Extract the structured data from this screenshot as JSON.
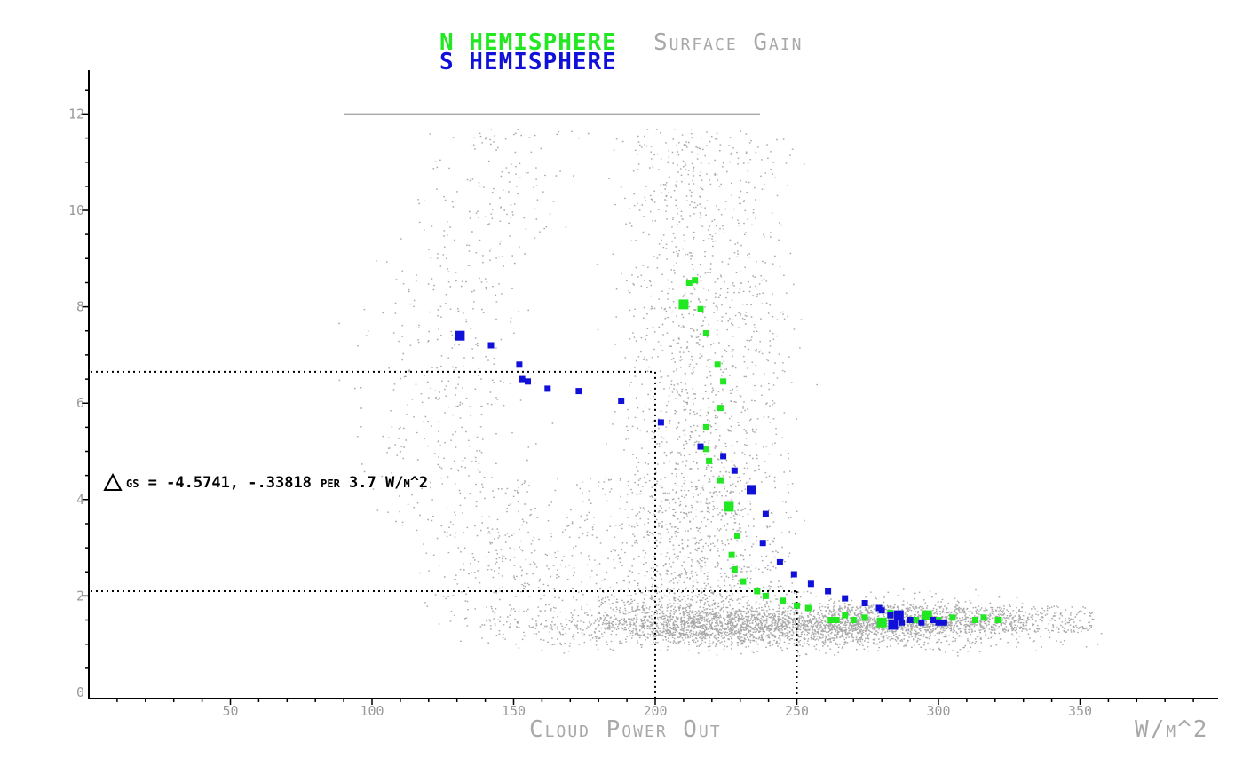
{
  "chart_data": {
    "type": "scatter",
    "title_parts": {
      "n_label": "N HEMISPHERE",
      "gain_label": "Surface Gain",
      "s_label": "S HEMISPHERE"
    },
    "xlabel": "Cloud Power Out",
    "x_units": "W/m^2",
    "xlim": [
      0,
      400
    ],
    "ylim": [
      0,
      12.5
    ],
    "x_ticks": [
      50,
      100,
      150,
      200,
      250,
      300,
      350
    ],
    "y_ticks": [
      0,
      2,
      4,
      6,
      8,
      10,
      12
    ],
    "annotation": "gs = -4.5741, -.33818 per 3.7 W/m^2",
    "annotation_symbol": "triangle-delta",
    "reference_lines": [
      {
        "x": 200,
        "y": 6.65
      },
      {
        "x": 250,
        "y": 2.1
      }
    ],
    "colors": {
      "n_hemisphere": "#22e822",
      "s_hemisphere": "#1010d8",
      "background_points": "#a8a8a8",
      "axes": "#000000"
    },
    "series": [
      {
        "name": "N HEMISPHERE",
        "color": "#22e822",
        "points": [
          [
            212,
            8.5
          ],
          [
            214,
            8.55
          ],
          [
            210,
            8.05
          ],
          [
            216,
            7.95
          ],
          [
            218,
            7.45
          ],
          [
            222,
            6.8
          ],
          [
            224,
            6.45
          ],
          [
            223,
            5.9
          ],
          [
            218,
            5.5
          ],
          [
            218,
            5.05
          ],
          [
            219,
            4.8
          ],
          [
            223,
            4.4
          ],
          [
            226,
            3.85
          ],
          [
            229,
            3.25
          ],
          [
            227,
            2.85
          ],
          [
            228,
            2.55
          ],
          [
            231,
            2.3
          ],
          [
            236,
            2.1
          ],
          [
            239,
            2.0
          ],
          [
            245,
            1.9
          ],
          [
            250,
            1.8
          ],
          [
            254,
            1.75
          ],
          [
            262,
            1.5
          ],
          [
            264,
            1.5
          ],
          [
            267,
            1.6
          ],
          [
            270,
            1.5
          ],
          [
            274,
            1.55
          ],
          [
            280,
            1.45
          ],
          [
            283,
            1.65
          ],
          [
            286,
            1.55
          ],
          [
            292,
            1.5
          ],
          [
            296,
            1.6
          ],
          [
            300,
            1.5
          ],
          [
            305,
            1.55
          ],
          [
            313,
            1.5
          ],
          [
            316,
            1.55
          ],
          [
            321,
            1.5
          ]
        ],
        "sizes": [
          1,
          1,
          2,
          1,
          1,
          1,
          1,
          1,
          1,
          1,
          1,
          1,
          2,
          1,
          1,
          1,
          1,
          1,
          1,
          1,
          1,
          1,
          1,
          1,
          1,
          1,
          1,
          2,
          1,
          1,
          1,
          2,
          1,
          1,
          1,
          1,
          1
        ]
      },
      {
        "name": "S HEMISPHERE",
        "color": "#1010d8",
        "points": [
          [
            131,
            7.4
          ],
          [
            142,
            7.2
          ],
          [
            152,
            6.8
          ],
          [
            153,
            6.5
          ],
          [
            155,
            6.45
          ],
          [
            162,
            6.3
          ],
          [
            173,
            6.25
          ],
          [
            188,
            6.05
          ],
          [
            202,
            5.6
          ],
          [
            216,
            5.1
          ],
          [
            224,
            4.9
          ],
          [
            228,
            4.6
          ],
          [
            234,
            4.2
          ],
          [
            239,
            3.7
          ],
          [
            238,
            3.1
          ],
          [
            244,
            2.7
          ],
          [
            249,
            2.45
          ],
          [
            255,
            2.25
          ],
          [
            261,
            2.1
          ],
          [
            267,
            1.95
          ],
          [
            274,
            1.85
          ],
          [
            279,
            1.75
          ],
          [
            280,
            1.7
          ],
          [
            283,
            1.6
          ],
          [
            286,
            1.6
          ],
          [
            287,
            1.45
          ],
          [
            290,
            1.5
          ],
          [
            284,
            1.4
          ],
          [
            294,
            1.45
          ],
          [
            298,
            1.5
          ],
          [
            300,
            1.45
          ],
          [
            302,
            1.45
          ]
        ],
        "sizes": [
          2,
          1,
          1,
          1,
          1,
          1,
          1,
          1,
          1,
          1,
          1,
          1,
          2,
          1,
          1,
          1,
          1,
          1,
          1,
          1,
          1,
          1,
          1,
          1,
          2,
          1,
          1,
          2,
          1,
          1,
          1,
          1
        ]
      }
    ]
  }
}
